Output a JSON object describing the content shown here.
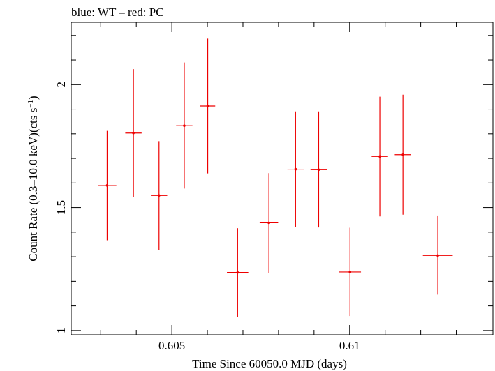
{
  "chart_data": {
    "type": "scatter",
    "title": "blue: WT – red: PC",
    "xlabel": "Time Since 60050.0 MJD (days)",
    "ylabel": "Count Rate (0.3–10.0 keV)(cts s",
    "ylabel_sup": "−1",
    "ylabel_suffix": ")",
    "xlim": [
      0.60217,
      0.61403
    ],
    "ylim": [
      0.9826,
      2.2533
    ],
    "x_ticks": [
      {
        "value": 0.605,
        "label": "0.605"
      },
      {
        "value": 0.61,
        "label": "0.61"
      }
    ],
    "y_ticks": [
      {
        "value": 1,
        "label": "1"
      },
      {
        "value": 1.5,
        "label": "1.5"
      },
      {
        "value": 2,
        "label": "2"
      }
    ],
    "x_minor_step": 0.001,
    "y_minor_step": 0.1,
    "grid": false,
    "series": [
      {
        "color": "#ee0000",
        "points": [
          {
            "x": 0.60318,
            "xerr": 0.00026,
            "y": 1.59,
            "ylo": 1.367,
            "yhi": 1.812
          },
          {
            "x": 0.60392,
            "xerr": 0.00023,
            "y": 1.803,
            "ylo": 1.544,
            "yhi": 2.063
          },
          {
            "x": 0.60464,
            "xerr": 0.00023,
            "y": 1.549,
            "ylo": 1.328,
            "yhi": 1.77
          },
          {
            "x": 0.60535,
            "xerr": 0.00023,
            "y": 1.833,
            "ylo": 1.577,
            "yhi": 2.09
          },
          {
            "x": 0.60601,
            "xerr": 0.00021,
            "y": 1.913,
            "ylo": 1.639,
            "yhi": 2.187
          },
          {
            "x": 0.60685,
            "xerr": 0.0003,
            "y": 1.236,
            "ylo": 1.056,
            "yhi": 1.416
          },
          {
            "x": 0.60773,
            "xerr": 0.00026,
            "y": 1.438,
            "ylo": 1.233,
            "yhi": 1.64
          },
          {
            "x": 0.60848,
            "xerr": 0.00023,
            "y": 1.656,
            "ylo": 1.422,
            "yhi": 1.891
          },
          {
            "x": 0.60913,
            "xerr": 0.00023,
            "y": 1.654,
            "ylo": 1.419,
            "yhi": 1.891
          },
          {
            "x": 0.61001,
            "xerr": 0.00031,
            "y": 1.238,
            "ylo": 1.059,
            "yhi": 1.418
          },
          {
            "x": 0.61085,
            "xerr": 0.00023,
            "y": 1.708,
            "ylo": 1.464,
            "yhi": 1.951
          },
          {
            "x": 0.6115,
            "xerr": 0.00023,
            "y": 1.715,
            "ylo": 1.471,
            "yhi": 1.959
          },
          {
            "x": 0.61248,
            "xerr": 0.00042,
            "y": 1.305,
            "ylo": 1.146,
            "yhi": 1.465
          }
        ]
      }
    ]
  }
}
